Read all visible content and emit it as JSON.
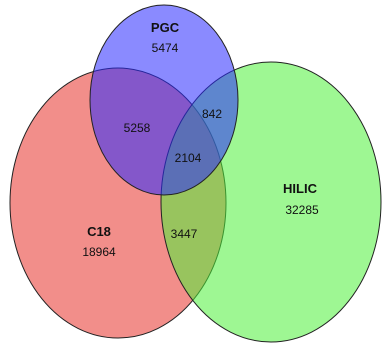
{
  "sets": {
    "pgc": {
      "name": "PGC",
      "count": "5474",
      "color": "#2a2aff"
    },
    "c18": {
      "name": "C18",
      "count": "18964",
      "color": "#e8322a"
    },
    "hilic": {
      "name": "HILIC",
      "count": "32285",
      "color": "#4ef03a"
    }
  },
  "overlaps": {
    "pgc_c18": "5258",
    "pgc_hilic": "842",
    "pgc_c18_hilic": "2104",
    "c18_hilic": "3447"
  }
}
